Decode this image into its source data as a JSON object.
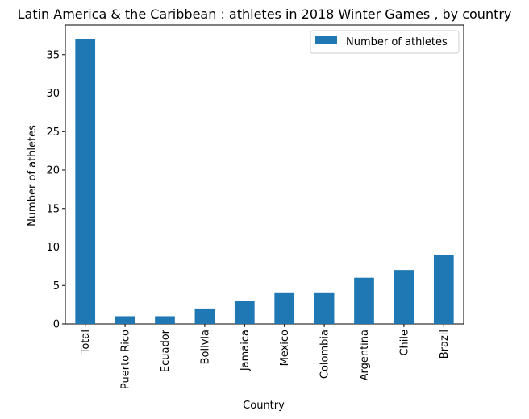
{
  "chart_data": {
    "type": "bar",
    "title": "Latin America & the Caribbean : athletes in 2018 Winter Games , by country",
    "xlabel": "Country",
    "ylabel": "Number of athletes",
    "categories": [
      "Total",
      "Puerto Rico",
      "Ecuador",
      "Bolivia",
      "Jamaica",
      "Mexico",
      "Colombia",
      "Argentina",
      "Chile",
      "Brazil"
    ],
    "series": [
      {
        "name": "Number of athletes",
        "values": [
          37,
          1,
          1,
          2,
          3,
          4,
          4,
          6,
          7,
          9
        ],
        "color": "#1f77b4"
      }
    ],
    "ylim": [
      0,
      38.85
    ],
    "yticks": [
      0,
      5,
      10,
      15,
      20,
      25,
      30,
      35
    ],
    "grid": false,
    "legend_position": "top-right"
  }
}
